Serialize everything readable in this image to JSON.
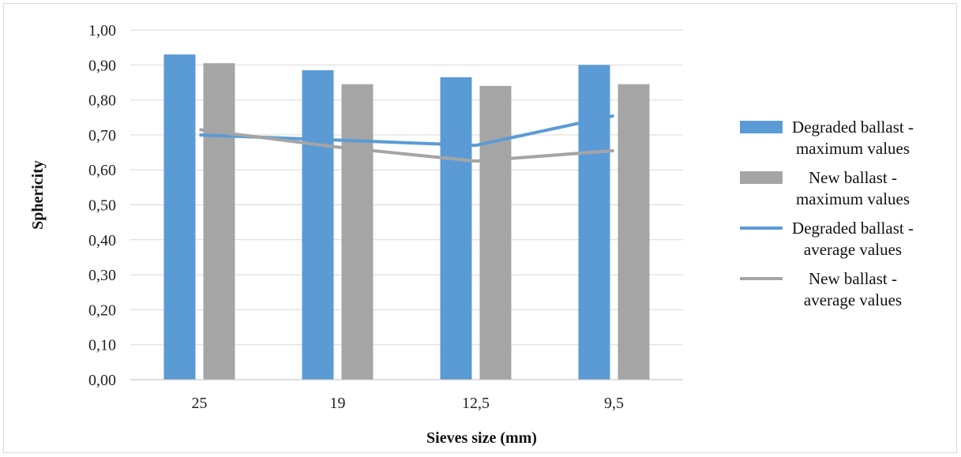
{
  "chart_data": {
    "type": "bar",
    "categories": [
      "25",
      "19",
      "12,5",
      "9,5"
    ],
    "series": [
      {
        "name": "Degraded ballast - maximum values",
        "kind": "bar",
        "color": "#5b9bd5",
        "values": [
          0.93,
          0.885,
          0.865,
          0.9
        ]
      },
      {
        "name": "New ballast - maximum values",
        "kind": "bar",
        "color": "#a5a5a5",
        "values": [
          0.905,
          0.845,
          0.84,
          0.845
        ]
      },
      {
        "name": "Degraded ballast - average values",
        "kind": "line",
        "color": "#5b9bd5",
        "values": [
          0.7,
          0.685,
          0.67,
          0.755
        ]
      },
      {
        "name": "New ballast - average values",
        "kind": "line",
        "color": "#a5a5a5",
        "values": [
          0.715,
          0.665,
          0.625,
          0.655
        ]
      }
    ],
    "legend": [
      [
        "Degraded ballast -",
        "maximum values"
      ],
      [
        "New ballast -",
        "maximum values"
      ],
      [
        "Degraded ballast -",
        "average values"
      ],
      [
        "New ballast -",
        "average values"
      ]
    ],
    "title": "",
    "xlabel": "Sieves size (mm)",
    "ylabel": "Sphericity",
    "ylim": [
      0,
      1
    ],
    "yticks": [
      "0,00",
      "0,10",
      "0,20",
      "0,30",
      "0,40",
      "0,50",
      "0,60",
      "0,70",
      "0,80",
      "0,90",
      "1,00"
    ],
    "grid": true,
    "legend_position": "right"
  }
}
